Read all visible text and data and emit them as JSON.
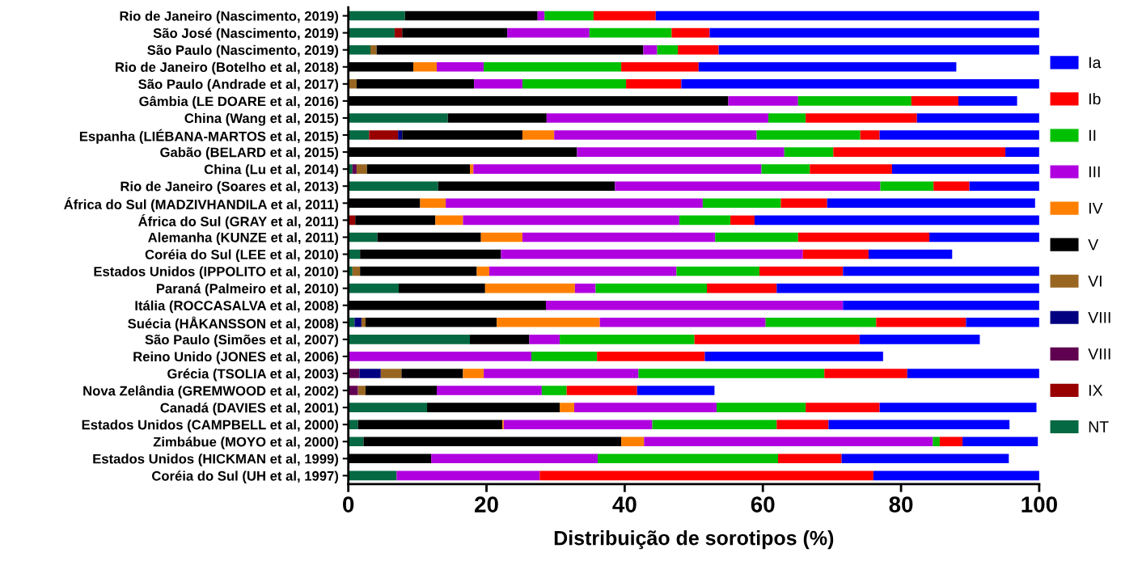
{
  "chart_data": {
    "type": "bar",
    "orientation": "horizontal",
    "stacked": true,
    "xlabel": "Distribuição de sorotipos (%)",
    "xlim": [
      0,
      100
    ],
    "xticks": [
      0,
      20,
      40,
      60,
      80,
      100
    ],
    "grid": false,
    "legend": "right",
    "categories": [
      "Rio de Janeiro (Nascimento, 2019)",
      "São José (Nascimento, 2019)",
      "São Paulo (Nascimento, 2019)",
      "Rio de Janeiro (Botelho et al, 2018)",
      "São Paulo (Andrade et al, 2017)",
      "Gâmbia (LE DOARE et al, 2016)",
      "China (Wang et al, 2015)",
      "Espanha (LIÉBANA-MARTOS et al, 2015)",
      "Gabão (BELARD et al, 2015)",
      "China (Lu et al, 2014)",
      "Rio de Janeiro (Soares et al, 2013)",
      "África do Sul (MADZIVHANDILA et al, 2011)",
      "África do Sul (GRAY et al, 2011)",
      "Alemanha (KUNZE et al, 2011)",
      "Coréia do Sul (LEE et al, 2010)",
      "Estados Unidos (IPPOLITO et al, 2010)",
      "Paraná (Palmeiro et al, 2010)",
      "Itália (ROCCASALVA et al, 2008)",
      "Suécia (HÅKANSSON et al, 2008)",
      "São Paulo (Simões et al, 2007)",
      "Reino Unido (JONES et al, 2006)",
      "Grécia (TSOLIA et al, 2003)",
      "Nova Zelândia (GREMWOOD et al, 2002)",
      "Canadá (DAVIES et al, 2001)",
      "Estados Unidos (CAMPBELL et al, 2000)",
      "Zimbábue (MOYO et al, 2000)",
      "Estados Unidos (HICKMAN et al, 1999)",
      "Coréia do Sul (UH et al, 1997)"
    ],
    "series": [
      {
        "name": "NT",
        "color": "#056943",
        "values": [
          8.2,
          6.7,
          3.2,
          null,
          null,
          null,
          14.4,
          3.0,
          null,
          0.6,
          13.0,
          null,
          null,
          4.2,
          1.7,
          0.6,
          7.3,
          null,
          0.9,
          17.6,
          null,
          null,
          null,
          11.4,
          1.4,
          2.2,
          null,
          7.0
        ]
      },
      {
        "name": "IX",
        "color": "#990000",
        "values": [
          null,
          1.1,
          null,
          null,
          null,
          null,
          null,
          4.2,
          null,
          null,
          null,
          null,
          1.0,
          null,
          null,
          null,
          null,
          null,
          null,
          null,
          null,
          null,
          null,
          null,
          null,
          null,
          null,
          null
        ]
      },
      {
        "name": "VIII",
        "color": "#600050",
        "values": [
          null,
          null,
          null,
          null,
          null,
          null,
          null,
          null,
          null,
          0.6,
          null,
          null,
          null,
          null,
          null,
          null,
          null,
          null,
          null,
          null,
          null,
          1.6,
          1.4,
          null,
          null,
          null,
          null,
          null
        ]
      },
      {
        "name": "VIII",
        "color": "#000080",
        "values": [
          null,
          null,
          null,
          null,
          null,
          null,
          null,
          0.6,
          null,
          null,
          null,
          null,
          null,
          null,
          null,
          null,
          null,
          null,
          1.0,
          null,
          null,
          3.1,
          null,
          null,
          null,
          null,
          null,
          null
        ]
      },
      {
        "name": "VI",
        "color": "#996622",
        "values": [
          null,
          null,
          0.9,
          null,
          1.2,
          null,
          null,
          null,
          null,
          1.5,
          null,
          null,
          null,
          null,
          null,
          1.1,
          null,
          null,
          0.6,
          null,
          null,
          3.0,
          1.1,
          null,
          null,
          null,
          null,
          null
        ]
      },
      {
        "name": "V",
        "color": "#000000",
        "values": [
          19.2,
          15.2,
          38.6,
          9.4,
          17.0,
          55.0,
          14.3,
          17.4,
          33.1,
          14.9,
          25.6,
          10.4,
          11.6,
          15.0,
          20.4,
          16.9,
          12.5,
          28.6,
          19.0,
          8.6,
          null,
          8.9,
          10.3,
          19.2,
          20.9,
          37.3,
          12.0,
          null
        ]
      },
      {
        "name": "IV",
        "color": "#ff8000",
        "values": [
          null,
          null,
          null,
          3.4,
          null,
          null,
          null,
          4.6,
          null,
          0.5,
          null,
          3.7,
          4.0,
          6.0,
          null,
          1.8,
          13.0,
          null,
          14.9,
          null,
          null,
          3.0,
          null,
          2.1,
          0.2,
          3.3,
          null,
          null
        ]
      },
      {
        "name": "III",
        "color": "#b000e0",
        "values": [
          1.0,
          11.9,
          2.0,
          6.8,
          7.0,
          10.1,
          32.1,
          29.3,
          30.0,
          41.7,
          38.4,
          37.2,
          31.3,
          27.9,
          43.7,
          27.1,
          3.0,
          43.0,
          24.0,
          4.4,
          26.5,
          22.4,
          15.2,
          20.6,
          21.5,
          41.8,
          24.1,
          20.7
        ]
      },
      {
        "name": "II",
        "color": "#00c000",
        "values": [
          7.1,
          11.9,
          3.0,
          19.9,
          15.0,
          16.4,
          5.4,
          15.0,
          7.1,
          7.0,
          7.7,
          11.3,
          7.4,
          12.0,
          null,
          12.0,
          16.1,
          null,
          16.0,
          19.5,
          9.5,
          26.9,
          3.6,
          12.9,
          18.0,
          1.0,
          26.1,
          null
        ]
      },
      {
        "name": "Ib",
        "color": "#ff0000",
        "values": [
          9.0,
          5.5,
          5.9,
          11.2,
          8.0,
          6.8,
          16.1,
          2.8,
          24.9,
          11.9,
          5.2,
          6.7,
          3.5,
          19.0,
          9.5,
          12.1,
          10.1,
          null,
          13.0,
          23.9,
          15.6,
          12.0,
          10.2,
          10.7,
          7.5,
          3.3,
          9.2,
          48.3
        ]
      },
      {
        "name": "Ia",
        "color": "#0000ff",
        "values": [
          55.5,
          47.7,
          46.4,
          37.3,
          51.8,
          8.5,
          17.7,
          23.1,
          4.9,
          21.3,
          10.1,
          30.1,
          41.2,
          15.9,
          12.1,
          28.4,
          38.0,
          28.4,
          10.6,
          17.4,
          25.8,
          19.1,
          11.2,
          22.7,
          26.2,
          10.9,
          24.2,
          24.0
        ]
      }
    ]
  }
}
